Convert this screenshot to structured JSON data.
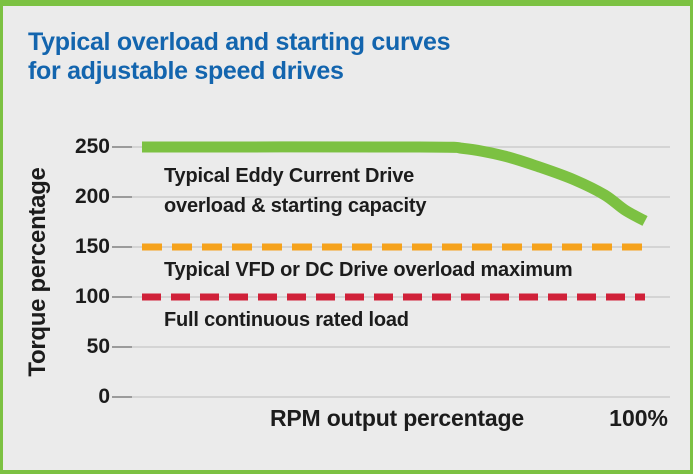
{
  "title": {
    "line1": "Typical overload and starting curves",
    "line2": "for adjustable speed drives"
  },
  "colors": {
    "frame_green": "#7CC142",
    "background": "#EBEBEB",
    "title_blue": "#1365AE",
    "text": "#1C1C1C",
    "gridline": "#C5C5C5",
    "tick": "#9B9B9B",
    "eddy_green": "#7CC142",
    "vfd_orange": "#F5A21C",
    "full_load_red": "#D02139"
  },
  "chart_data": {
    "type": "line",
    "title": "Typical overload and starting curves for adjustable speed drives",
    "xlabel": "RPM output percentage",
    "ylabel": "Torque percentage",
    "x_end_label": "100%",
    "xlim": [
      0,
      100
    ],
    "ylim": [
      0,
      250
    ],
    "yticks": [
      250,
      200,
      150,
      100,
      50,
      0
    ],
    "grid": true,
    "legend_position": "inline-annotations",
    "series": [
      {
        "name": "Typical Eddy Current Drive overload & starting capacity",
        "style": "solid",
        "color": "#7CC142",
        "width": 11,
        "x": [
          0,
          55,
          64,
          72,
          79,
          86,
          92,
          96,
          100
        ],
        "y": [
          250,
          250,
          248.5,
          241,
          230,
          217,
          202,
          187,
          176
        ]
      },
      {
        "name": "Typical VFD or DC Drive overload maximum",
        "style": "dashed",
        "dash": "20 10",
        "color": "#F5A21C",
        "width": 7,
        "x": [
          0,
          100
        ],
        "y": [
          150,
          150
        ]
      },
      {
        "name": "Full continuous rated load",
        "style": "dashed",
        "dash": "19 10",
        "color": "#D02139",
        "width": 7,
        "x": [
          0,
          100
        ],
        "y": [
          100,
          100
        ]
      }
    ],
    "annotations": [
      {
        "lines": [
          "Typical Eddy Current Drive",
          "overload & starting capacity"
        ]
      },
      {
        "lines": [
          "Typical VFD or DC Drive overload maximum"
        ]
      },
      {
        "lines": [
          "Full continuous rated load"
        ]
      }
    ]
  }
}
